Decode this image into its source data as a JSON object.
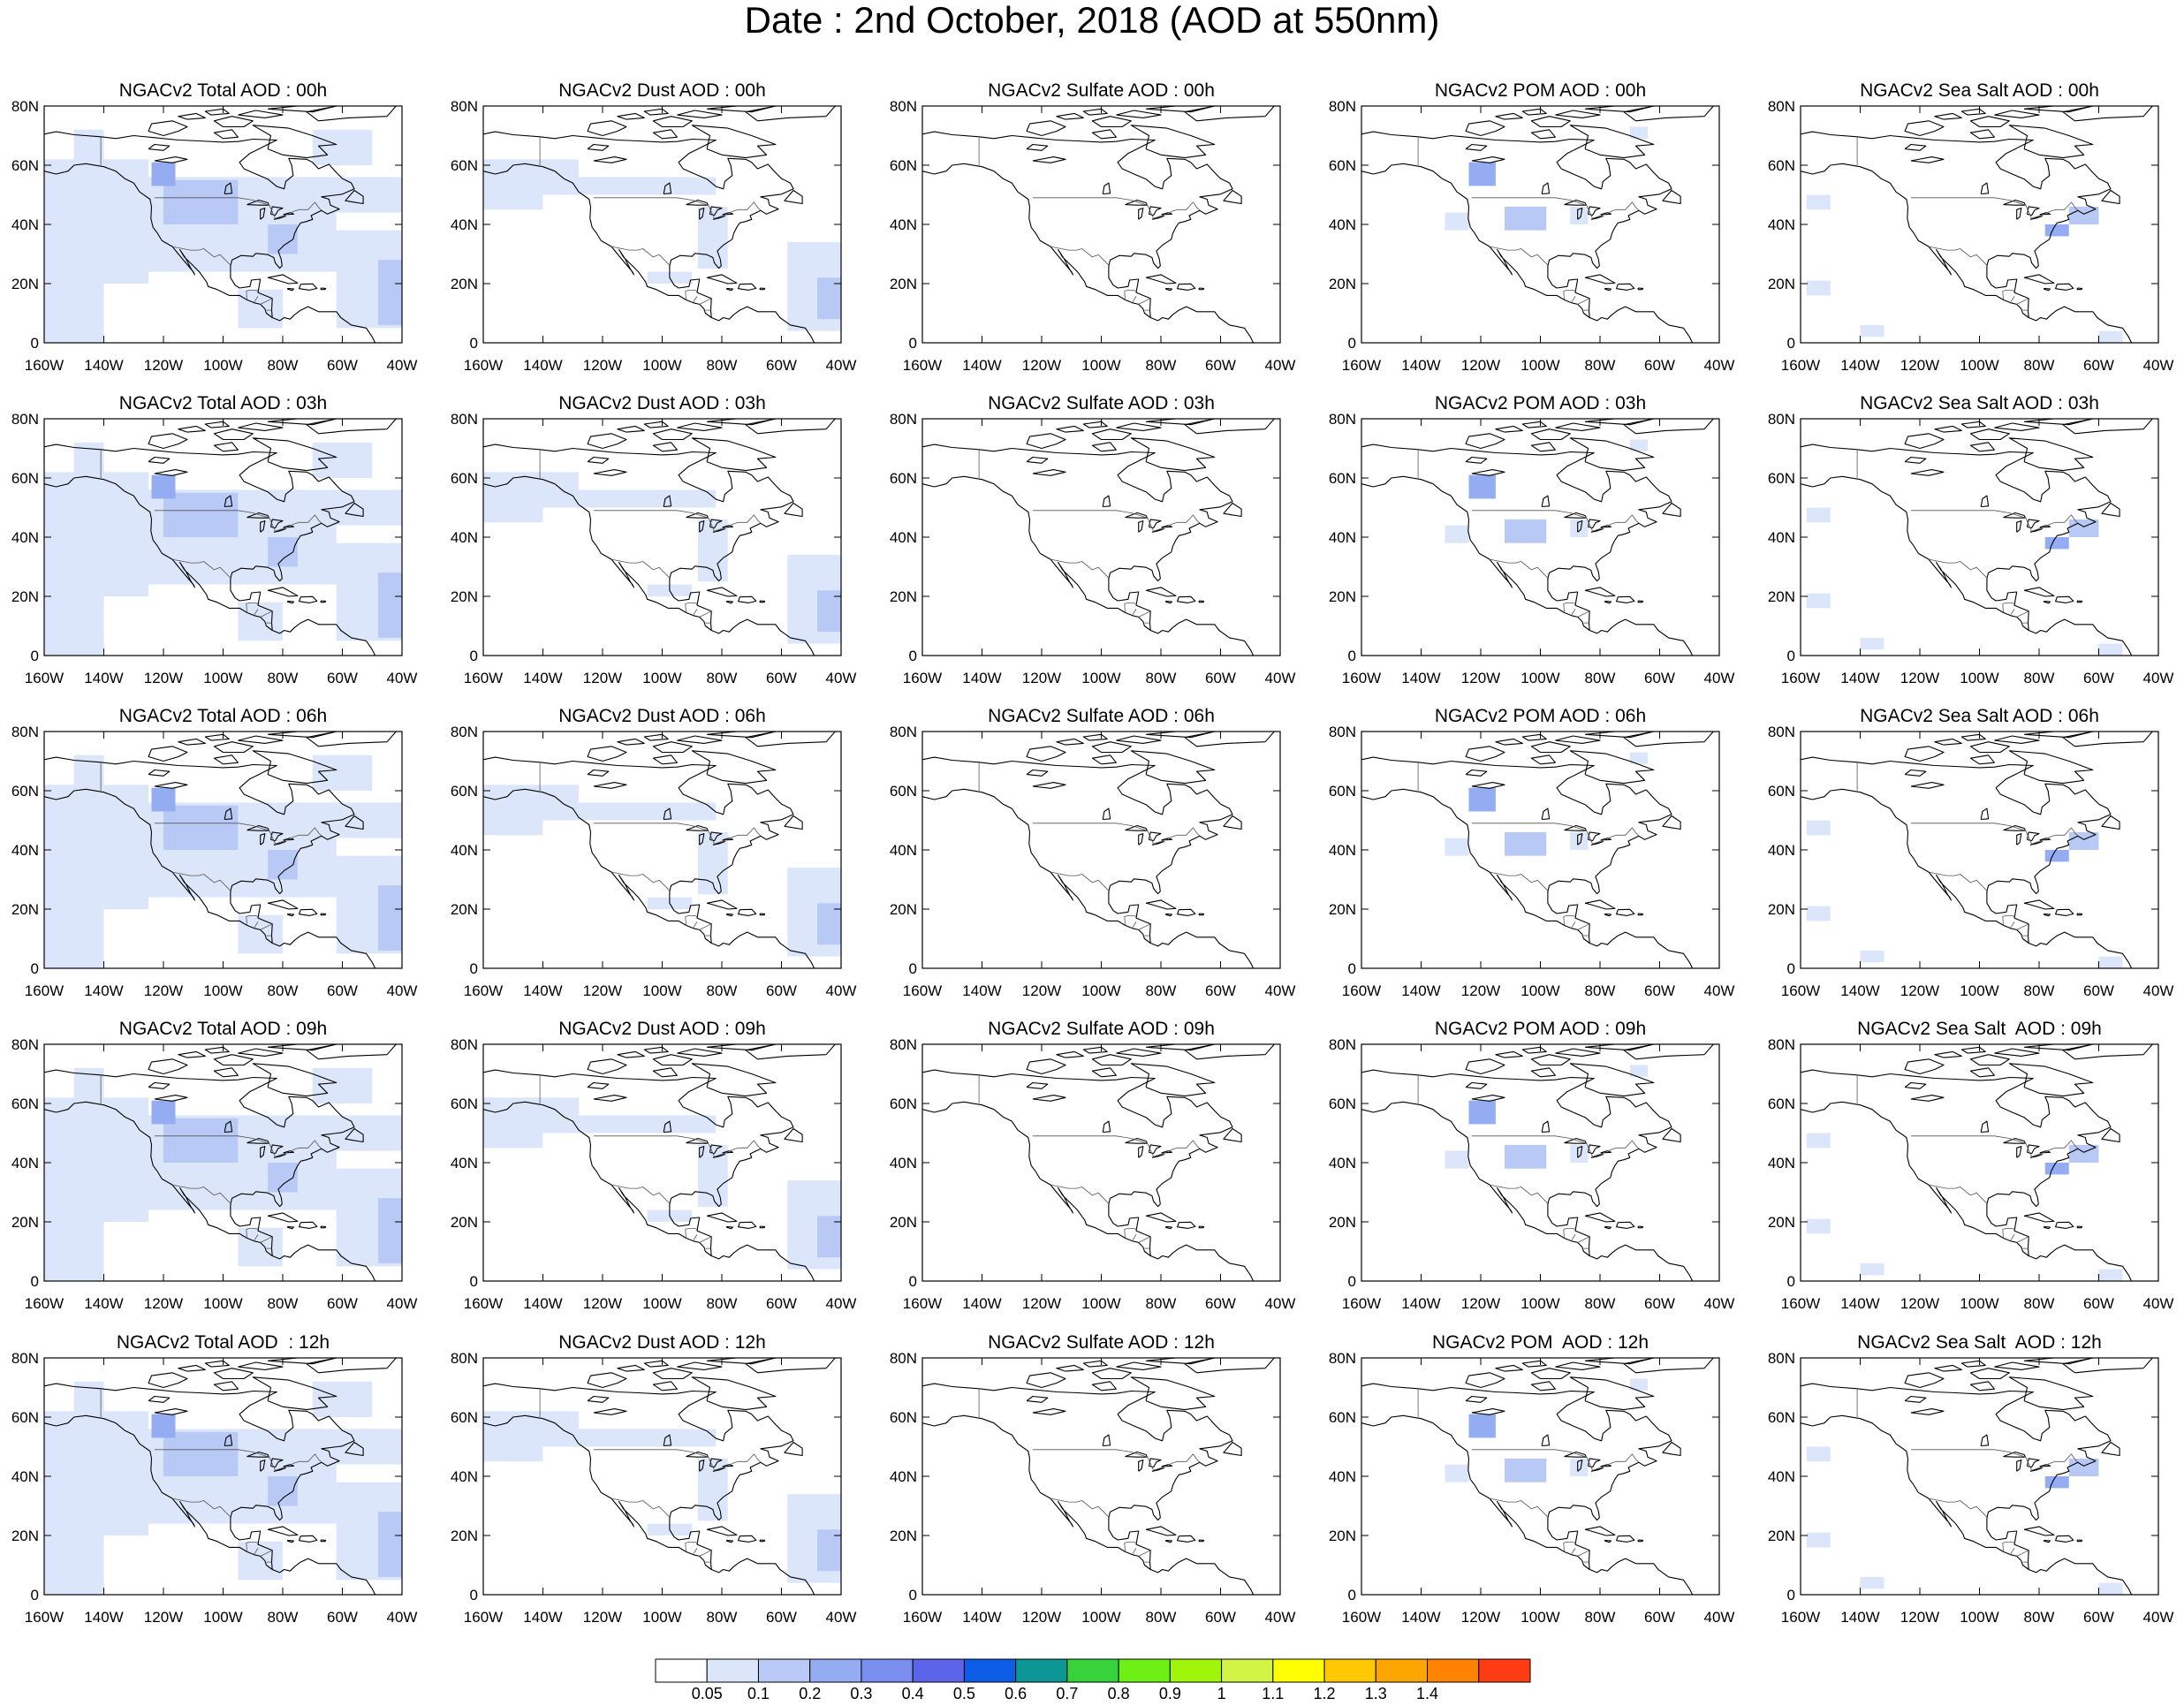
{
  "title": "Date : 2nd October, 2018 (AOD at 550nm)",
  "axes": {
    "x_ticks": [
      "160W",
      "140W",
      "120W",
      "100W",
      "80W",
      "60W",
      "40W"
    ],
    "y_ticks": [
      "0",
      "20N",
      "40N",
      "60N",
      "80N"
    ],
    "lon_range": [
      -160,
      -40
    ],
    "lat_range": [
      0,
      80
    ]
  },
  "panels": [
    {
      "title": "NGACv2 Total AOD : 00h",
      "species": "total"
    },
    {
      "title": "NGACv2 Dust AOD : 00h",
      "species": "dust"
    },
    {
      "title": "NGACv2 Sulfate AOD : 00h",
      "species": "sulfate"
    },
    {
      "title": "NGACv2 POM AOD : 00h",
      "species": "pom"
    },
    {
      "title": "NGACv2 Sea Salt AOD : 00h",
      "species": "seasalt"
    },
    {
      "title": "NGACv2 Total AOD : 03h",
      "species": "total"
    },
    {
      "title": "NGACv2 Dust AOD : 03h",
      "species": "dust"
    },
    {
      "title": "NGACv2 Sulfate AOD : 03h",
      "species": "sulfate"
    },
    {
      "title": "NGACv2 POM AOD : 03h",
      "species": "pom"
    },
    {
      "title": "NGACv2 Sea Salt AOD : 03h",
      "species": "seasalt"
    },
    {
      "title": "NGACv2 Total AOD : 06h",
      "species": "total"
    },
    {
      "title": "NGACv2 Dust AOD : 06h",
      "species": "dust"
    },
    {
      "title": "NGACv2 Sulfate AOD : 06h",
      "species": "sulfate"
    },
    {
      "title": "NGACv2 POM AOD : 06h",
      "species": "pom"
    },
    {
      "title": "NGACv2 Sea Salt AOD : 06h",
      "species": "seasalt"
    },
    {
      "title": "NGACv2 Total AOD : 09h",
      "species": "total"
    },
    {
      "title": "NGACv2 Dust AOD : 09h",
      "species": "dust"
    },
    {
      "title": "NGACv2 Sulfate AOD : 09h",
      "species": "sulfate"
    },
    {
      "title": "NGACv2 POM AOD : 09h",
      "species": "pom"
    },
    {
      "title": "NGACv2 Sea Salt  AOD : 09h",
      "species": "seasalt"
    },
    {
      "title": "NGACv2 Total AOD  : 12h",
      "species": "total"
    },
    {
      "title": "NGACv2 Dust AOD : 12h",
      "species": "dust"
    },
    {
      "title": "NGACv2 Sulfate AOD : 12h",
      "species": "sulfate"
    },
    {
      "title": "NGACv2 POM  AOD : 12h",
      "species": "pom"
    },
    {
      "title": "NGACv2 Sea Salt  AOD : 12h",
      "species": "seasalt"
    }
  ],
  "colorbar": {
    "labels": [
      "0.05",
      "0.1",
      "0.2",
      "0.3",
      "0.4",
      "0.5",
      "0.6",
      "0.7",
      "0.8",
      "0.9",
      "1",
      "1.1",
      "1.2",
      "1.3",
      "1.4"
    ],
    "colors": [
      "#ffffff",
      "#dce6fa",
      "#b9c9f5",
      "#94adf2",
      "#7a8ef0",
      "#5c64ea",
      "#0c5ce6",
      "#0c9696",
      "#37d23c",
      "#6ef014",
      "#a0f50a",
      "#d2f545",
      "#ffff00",
      "#ffc800",
      "#ffa500",
      "#ff8200",
      "#ff3c14"
    ]
  },
  "fill_colors": {
    "light": "#dce6fa",
    "medium": "#b9c9f5",
    "strong": "#94adf2",
    "peak": "#5c64ea"
  },
  "chart_data": [
    {
      "type": "heatmap",
      "variable": "AOD at 550nm",
      "species": [
        "total",
        "dust",
        "sulfate",
        "pom",
        "seasalt"
      ],
      "forecast_hours": [
        "00h",
        "03h",
        "06h",
        "09h",
        "12h"
      ],
      "levels": [
        0.05,
        0.1,
        0.2,
        0.3,
        0.4,
        0.5,
        0.6,
        0.7,
        0.8,
        0.9,
        1,
        1.1,
        1.2,
        1.3,
        1.4
      ],
      "approx_max_by_species": {
        "total": 0.4,
        "dust": 0.2,
        "sulfate": 0.1,
        "pom": 0.4,
        "seasalt": 0.3
      }
    }
  ]
}
